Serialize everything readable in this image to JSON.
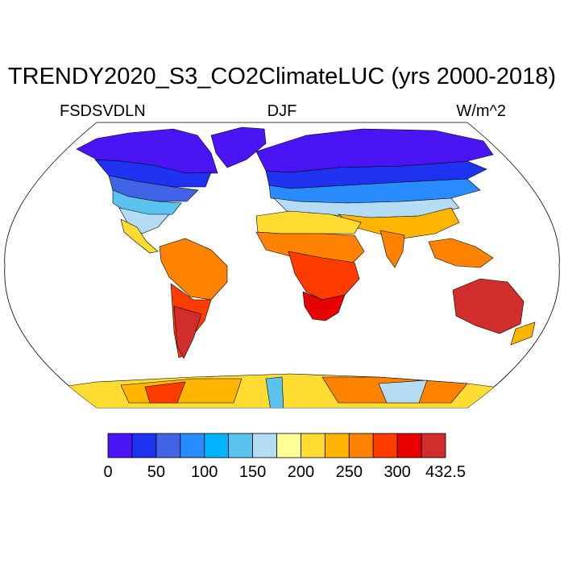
{
  "title": "TRENDY2020_S3_CO2ClimateLUC (yrs 2000-2018)",
  "variable": "FSDSVDLN",
  "season": "DJF",
  "units": "W/m^2",
  "colorbar": {
    "colors": [
      "#4a14f5",
      "#1e32f0",
      "#4164e6",
      "#288cff",
      "#00b4ff",
      "#5ac3f0",
      "#b4dcf5",
      "#ffff96",
      "#ffdc32",
      "#ffb400",
      "#ff8200",
      "#ff3c00",
      "#e60000",
      "#d22d2d"
    ],
    "ticks": [
      "0",
      "50",
      "100",
      "150",
      "200",
      "250",
      "300",
      "432.5"
    ]
  },
  "map_colors": {
    "polar": "#4a14f5",
    "boreal": "#1e32f0",
    "cool": "#4164e6",
    "mid": "#288cff",
    "light": "#5ac3f0",
    "pale": "#b4dcf5",
    "yellow": "#ffdc32",
    "orange": "#ffb400",
    "dorange": "#ff8200",
    "red": "#ff3c00",
    "dred": "#e60000",
    "brick": "#d22d2d"
  }
}
